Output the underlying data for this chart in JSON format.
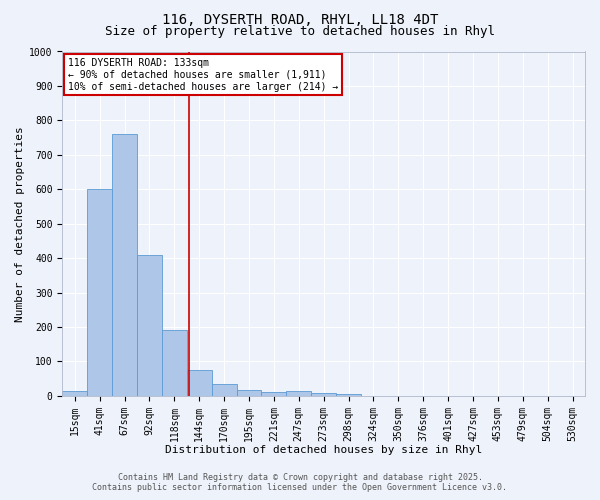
{
  "title_line1": "116, DYSERTH ROAD, RHYL, LL18 4DT",
  "title_line2": "Size of property relative to detached houses in Rhyl",
  "xlabel": "Distribution of detached houses by size in Rhyl",
  "ylabel": "Number of detached properties",
  "bins": [
    "15sqm",
    "41sqm",
    "67sqm",
    "92sqm",
    "118sqm",
    "144sqm",
    "170sqm",
    "195sqm",
    "221sqm",
    "247sqm",
    "273sqm",
    "298sqm",
    "324sqm",
    "350sqm",
    "376sqm",
    "401sqm",
    "427sqm",
    "453sqm",
    "479sqm",
    "504sqm",
    "530sqm"
  ],
  "values": [
    15,
    600,
    760,
    410,
    190,
    75,
    35,
    18,
    10,
    13,
    8,
    5,
    0,
    0,
    0,
    0,
    0,
    0,
    0,
    0,
    0
  ],
  "bar_color": "#aec6e8",
  "bar_edgecolor": "#5b9bd5",
  "vline_color": "#cc0000",
  "annotation_text": "116 DYSERTH ROAD: 133sqm\n← 90% of detached houses are smaller (1,911)\n10% of semi-detached houses are larger (214) →",
  "annotation_box_color": "#ffffff",
  "annotation_border_color": "#cc0000",
  "ylim": [
    0,
    1000
  ],
  "yticks": [
    0,
    100,
    200,
    300,
    400,
    500,
    600,
    700,
    800,
    900,
    1000
  ],
  "footer_line1": "Contains HM Land Registry data © Crown copyright and database right 2025.",
  "footer_line2": "Contains public sector information licensed under the Open Government Licence v3.0.",
  "bg_color": "#eef2fa",
  "plot_bg_color": "#eef2fa",
  "grid_color": "#ffffff",
  "title_fontsize": 10,
  "subtitle_fontsize": 9,
  "axis_label_fontsize": 8,
  "tick_fontsize": 7,
  "annotation_fontsize": 7,
  "footer_fontsize": 6
}
